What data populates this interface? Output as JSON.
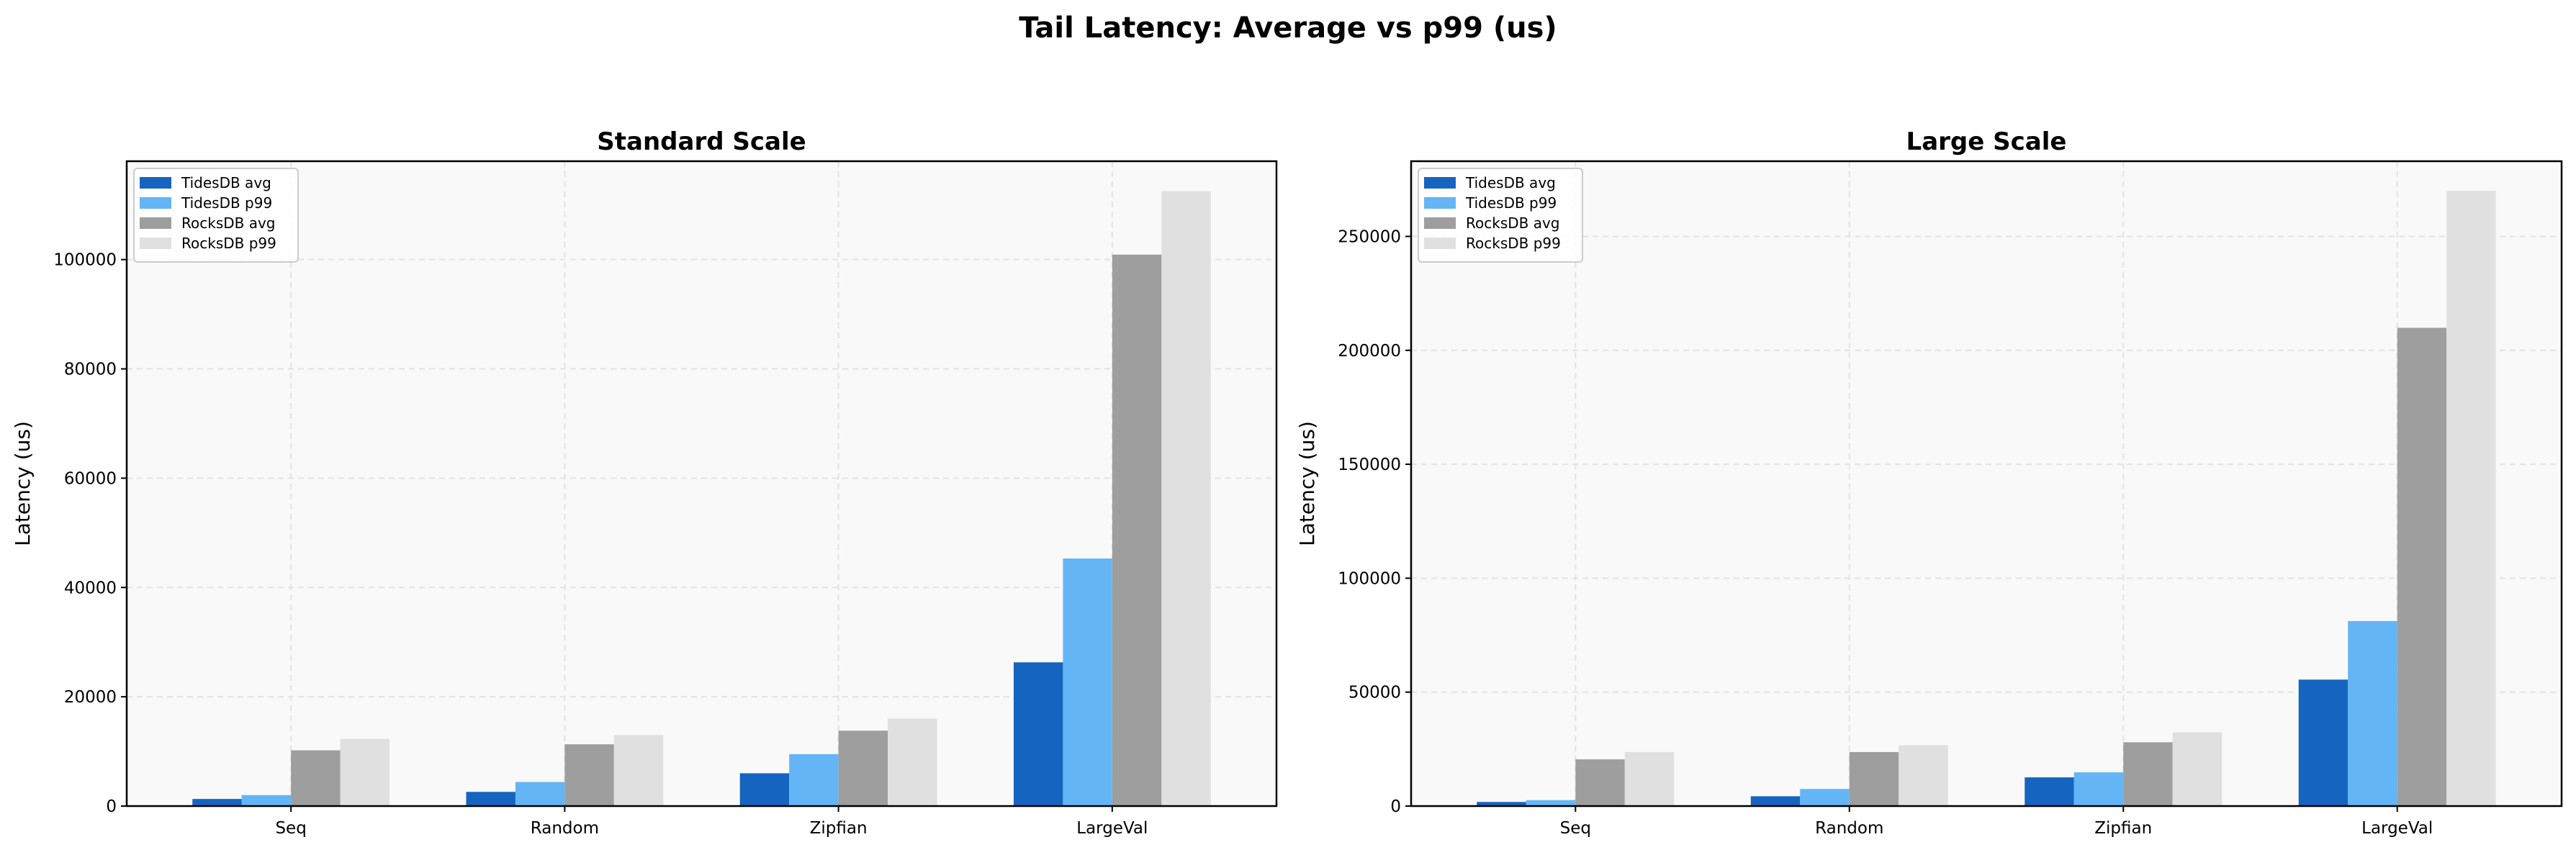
{
  "figure_title": "Tail Latency: Average vs p99 (us)",
  "colors": {
    "TidesDB avg": "#1565c0",
    "TidesDB p99": "#64b5f6",
    "RocksDB avg": "#9e9e9e",
    "RocksDB p99": "#e0e0e0",
    "plot_background": "#f9f9f9"
  },
  "chart_data": [
    {
      "type": "bar",
      "title": "Standard Scale",
      "xlabel": "",
      "ylabel": "Latency (us)",
      "categories": [
        "Seq",
        "Random",
        "Zipfian",
        "LargeVal"
      ],
      "ylim": [
        0,
        118000
      ],
      "yticks": [
        0,
        20000,
        40000,
        60000,
        80000,
        100000
      ],
      "grid": true,
      "legend_position": "top-left",
      "series": [
        {
          "name": "TidesDB avg",
          "values": [
            1300,
            2600,
            6000,
            26300
          ]
        },
        {
          "name": "TidesDB p99",
          "values": [
            2000,
            4400,
            9500,
            45300
          ]
        },
        {
          "name": "RocksDB avg",
          "values": [
            10200,
            11300,
            13800,
            100900
          ]
        },
        {
          "name": "RocksDB p99",
          "values": [
            12300,
            13000,
            16000,
            112500
          ]
        }
      ]
    },
    {
      "type": "bar",
      "title": "Large Scale",
      "xlabel": "",
      "ylabel": "Latency (us)",
      "categories": [
        "Seq",
        "Random",
        "Zipfian",
        "LargeVal"
      ],
      "ylim": [
        0,
        283000
      ],
      "yticks": [
        0,
        50000,
        100000,
        150000,
        200000,
        250000
      ],
      "grid": true,
      "legend_position": "top-left",
      "series": [
        {
          "name": "TidesDB avg",
          "values": [
            1800,
            4300,
            12600,
            55500
          ]
        },
        {
          "name": "TidesDB p99",
          "values": [
            2600,
            7500,
            14800,
            81200
          ]
        },
        {
          "name": "RocksDB avg",
          "values": [
            20500,
            23700,
            28000,
            209900
          ]
        },
        {
          "name": "RocksDB p99",
          "values": [
            23700,
            26700,
            32400,
            270000
          ]
        }
      ]
    }
  ]
}
